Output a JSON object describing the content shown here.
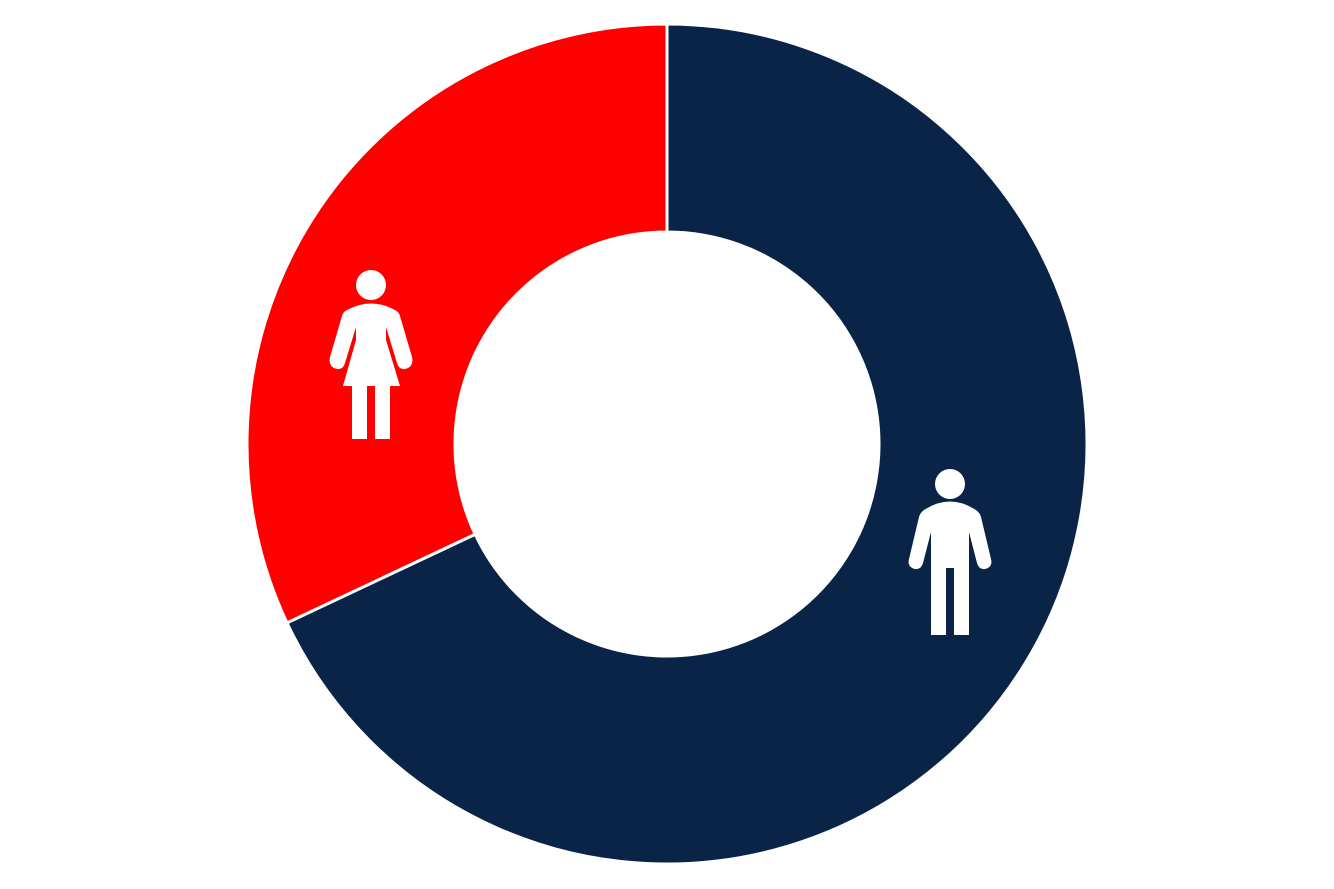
{
  "chart_data": {
    "type": "pie",
    "variant": "donut",
    "start": "top",
    "direction": "clockwise",
    "slices": [
      {
        "name": "",
        "icon": "male-icon",
        "value": 68,
        "color": "#092447"
      },
      {
        "name": "",
        "icon": "female-icon",
        "value": 32,
        "color": "#ff0000"
      }
    ],
    "separator_color": "#ffffff",
    "legend": "none"
  }
}
